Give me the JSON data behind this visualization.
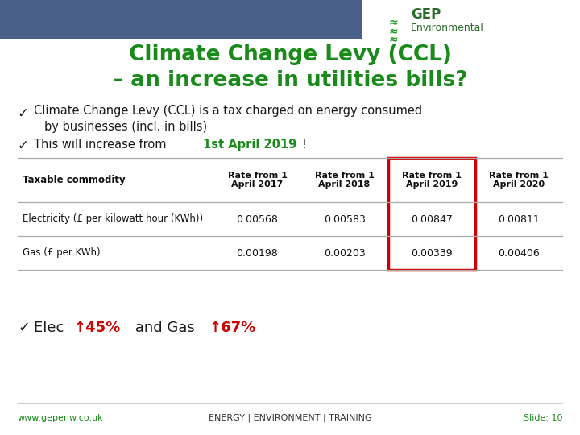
{
  "title_line1": "Climate Change Levy (CCL)",
  "title_line2": "– an increase in utilities bills?",
  "title_color": "#1a8a1a",
  "header_bar_color": "#4a5f8a",
  "bullet_check": "✓",
  "table_headers": [
    "Taxable commodity",
    "Rate from 1\nApril 2017",
    "Rate from 1\nApril 2018",
    "Rate from 1\nApril 2019",
    "Rate from 1\nApril 2020"
  ],
  "table_row1": [
    "Electricity (£ per kilowatt hour (KWh))",
    "0.00568",
    "0.00583",
    "0.00847",
    "0.00811"
  ],
  "table_row2": [
    "Gas (£ per KWh)",
    "0.00198",
    "0.00203",
    "0.00339",
    "0.00406"
  ],
  "highlight_color": "#cc0000",
  "arrow_color": "#cc0000",
  "elec_pct": "45%",
  "gas_pct": "67%",
  "footer_left": "www.gepenw.co.uk",
  "footer_center": "ENERGY | ENVIRONMENT | TRAINING",
  "footer_right": "Slide: 10",
  "footer_color": "#1a8a1a",
  "bg_color": "#ffffff",
  "text_color": "#1a1a1a",
  "gep_color": "#2a6a2a",
  "wave_color": "#2a9a2a"
}
